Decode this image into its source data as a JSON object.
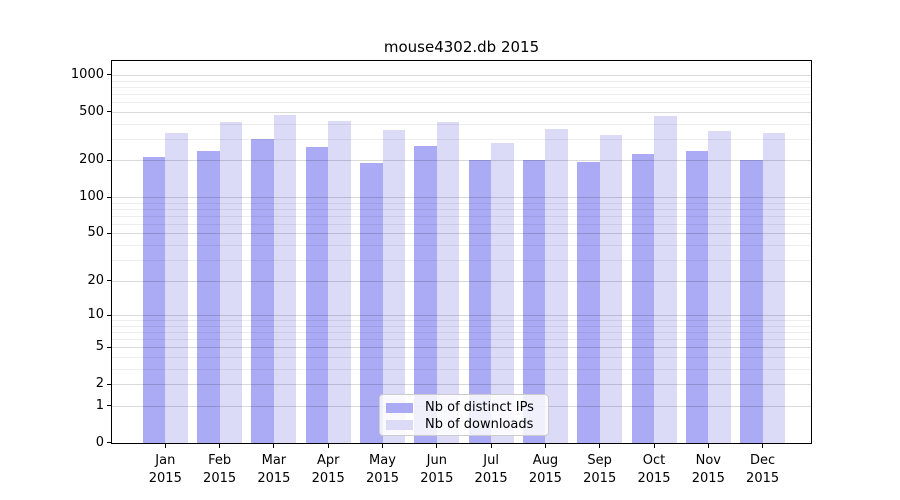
{
  "title": "mouse4302.db 2015",
  "colors": {
    "ips": "#aaaaf5",
    "downloads": "#dbdbf8",
    "grid_major": "rgba(0,0,0,0.15)",
    "grid_minor": "rgba(0,0,0,0.07)",
    "spine": "#000000"
  },
  "axes": {
    "y_ticks": [
      0,
      1,
      2,
      5,
      10,
      20,
      50,
      100,
      200,
      500,
      1000
    ],
    "y_minor_gridlines": [
      3,
      4,
      6,
      7,
      8,
      9,
      30,
      40,
      60,
      70,
      80,
      90,
      300,
      400,
      600,
      700,
      800,
      900
    ],
    "x_axis_year": "2015"
  },
  "legend": {
    "items": [
      "Nb of distinct IPs",
      "Nb of downloads"
    ]
  },
  "chart_data": {
    "type": "bar",
    "title": "mouse4302.db 2015",
    "categories": [
      "Jan",
      "Feb",
      "Mar",
      "Apr",
      "May",
      "Jun",
      "Jul",
      "Aug",
      "Sep",
      "Oct",
      "Nov",
      "Dec"
    ],
    "year": "2015",
    "series": [
      {
        "name": "Nb of distinct IPs",
        "color": "#aaaaf5",
        "values": [
          215,
          240,
          300,
          260,
          190,
          265,
          200,
          200,
          195,
          225,
          240,
          200
        ]
      },
      {
        "name": "Nb of downloads",
        "color": "#dbdbf8",
        "values": [
          335,
          415,
          470,
          420,
          355,
          415,
          280,
          365,
          325,
          460,
          350,
          335
        ]
      }
    ],
    "yscale": "log10(value+1)",
    "ylim": [
      0,
      1300
    ],
    "grid": true,
    "legend_position": "lower center"
  }
}
